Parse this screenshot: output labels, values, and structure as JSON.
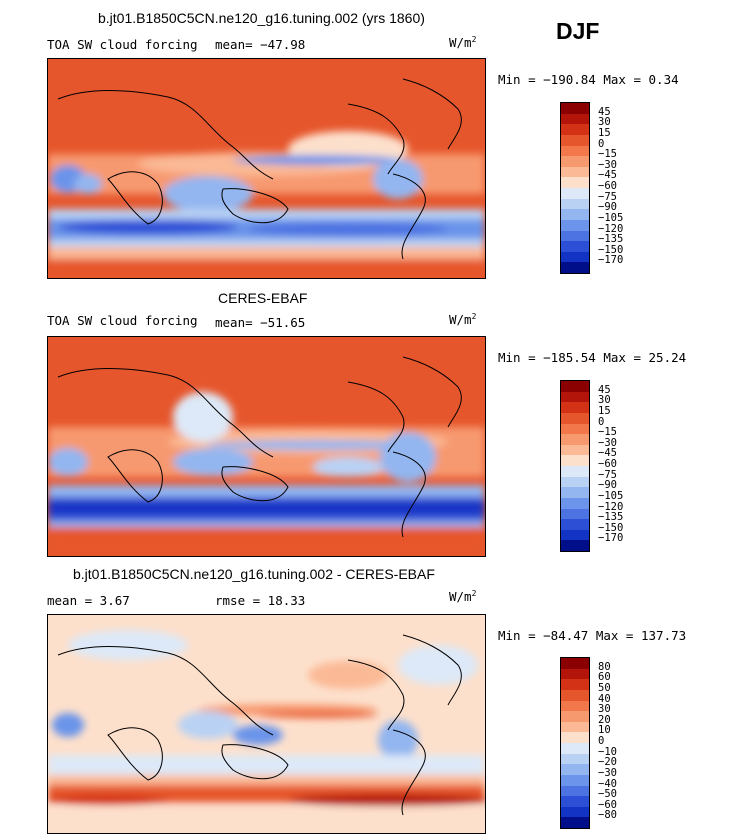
{
  "season": "DJF",
  "units_base": "W/m",
  "units_exp": "2",
  "panels": [
    {
      "title": "b.jt01.B1850C5CN.ne120_g16.tuning.002 (yrs 1860)",
      "variable": "TOA SW cloud forcing",
      "stat_text": "mean= −47.98",
      "minmax": "Min = −190.84  Max =   0.34",
      "levels": [
        "45",
        "30",
        "15",
        "0",
        "−15",
        "−30",
        "−45",
        "−60",
        "−75",
        "−90",
        "−105",
        "−120",
        "−135",
        "−150",
        "−170"
      ],
      "colors": [
        "#8b0000",
        "#b4150b",
        "#d33217",
        "#e6562c",
        "#f2774a",
        "#f7996f",
        "#fbb995",
        "#fde0cc",
        "#dde9f8",
        "#b9d2f4",
        "#93b6f0",
        "#6b94ea",
        "#4d72e2",
        "#2d4fd6",
        "#1333c4",
        "#000e8a"
      ]
    },
    {
      "title": "CERES-EBAF",
      "variable": "TOA SW cloud forcing",
      "stat_text": "mean= −51.65",
      "minmax": "Min = −185.54  Max =  25.24",
      "levels": [
        "45",
        "30",
        "15",
        "0",
        "−15",
        "−30",
        "−45",
        "−60",
        "−75",
        "−90",
        "−105",
        "−120",
        "−135",
        "−150",
        "−170"
      ],
      "colors": [
        "#8b0000",
        "#b4150b",
        "#d33217",
        "#e6562c",
        "#f2774a",
        "#f7996f",
        "#fbb995",
        "#fde0cc",
        "#dde9f8",
        "#b9d2f4",
        "#93b6f0",
        "#6b94ea",
        "#4d72e2",
        "#2d4fd6",
        "#1333c4",
        "#000e8a"
      ]
    },
    {
      "title": "b.jt01.B1850C5CN.ne120_g16.tuning.002 - CERES-EBAF",
      "mean_text": "mean =    3.67",
      "rmse_text": "rmse =   18.33",
      "minmax": "Min = −84.47  Max = 137.73",
      "levels": [
        "80",
        "60",
        "50",
        "40",
        "30",
        "20",
        "10",
        "0",
        "−10",
        "−20",
        "−30",
        "−40",
        "−50",
        "−60",
        "−80"
      ],
      "colors": [
        "#8b0000",
        "#b4150b",
        "#d33217",
        "#e6562c",
        "#f2774a",
        "#f7996f",
        "#fbb995",
        "#fde0cc",
        "#dde9f8",
        "#b9d2f4",
        "#93b6f0",
        "#6b94ea",
        "#4d72e2",
        "#2d4fd6",
        "#1333c4",
        "#000e8a"
      ]
    }
  ]
}
